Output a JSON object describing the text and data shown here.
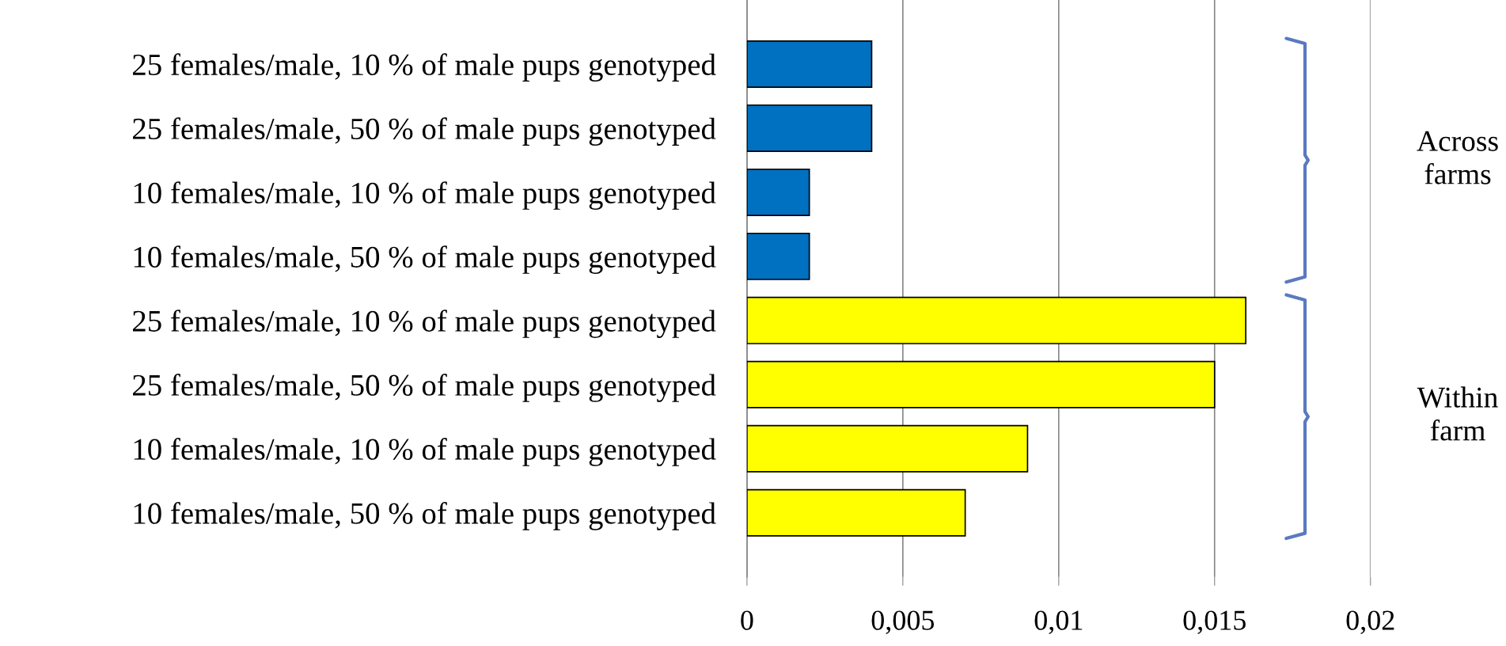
{
  "chart_data": {
    "type": "bar",
    "orientation": "horizontal",
    "categories": [
      "25 females/male, 10 % of male pups genotyped",
      "25 females/male, 50 % of male pups genotyped",
      "10 females/male, 10 % of male pups genotyped",
      "10 females/male, 50 % of male pups genotyped",
      "25 females/male, 10 % of male pups genotyped",
      "25 females/male, 50 % of male pups genotyped",
      "10 females/male, 10 % of male pups genotyped",
      "10 females/male, 50 % of male pups genotyped"
    ],
    "values": [
      0.004,
      0.004,
      0.002,
      0.002,
      0.016,
      0.015,
      0.009,
      0.007
    ],
    "colors": [
      "#0070c0",
      "#0070c0",
      "#0070c0",
      "#0070c0",
      "#ffff00",
      "#ffff00",
      "#ffff00",
      "#ffff00"
    ],
    "xlim": [
      0,
      0.02
    ],
    "xticks": [
      0,
      {
        "value": 0.005,
        "label": "0,005"
      },
      {
        "value": 0.01,
        "label": "0,01"
      },
      {
        "value": 0.015,
        "label": "0,015"
      },
      {
        "value": 0.02,
        "label": "0,02"
      }
    ],
    "grid": "x",
    "annotations": [
      "Across farms",
      "Within farm"
    ]
  }
}
